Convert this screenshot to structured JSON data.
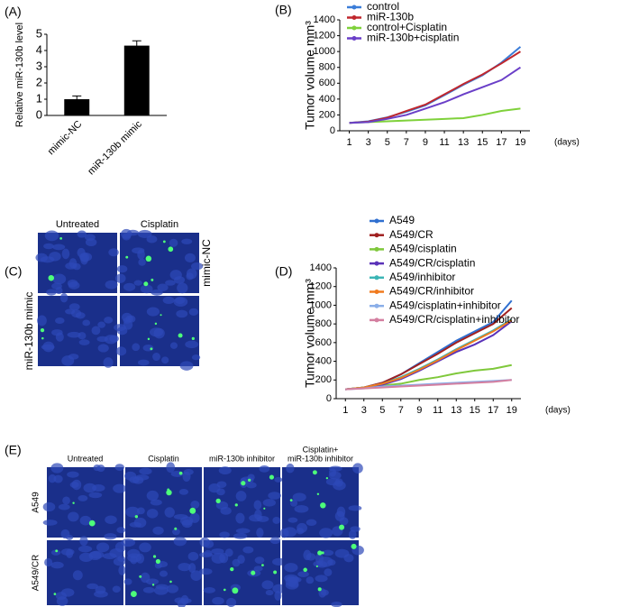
{
  "chart_data": [
    {
      "type": "bar",
      "panel_label": "(A)",
      "y_label": "Relative miR-130b level",
      "categories": [
        "mimic-NC",
        "miR-130b mimic"
      ],
      "values": [
        1,
        4.3
      ],
      "errors": [
        0.2,
        0.3
      ],
      "color": "#000000",
      "ylim": [
        0,
        5
      ],
      "yticks": [
        0,
        1,
        2,
        3,
        4,
        5
      ]
    },
    {
      "type": "line",
      "panel_label": "(B)",
      "y_label": "Tumor volume mm³",
      "x_label": "(days)",
      "x": [
        1,
        3,
        5,
        7,
        9,
        11,
        13,
        15,
        17,
        19
      ],
      "xlim": [
        0,
        20
      ],
      "xticks": [
        1,
        3,
        5,
        7,
        9,
        11,
        13,
        15,
        17,
        19
      ],
      "ylim": [
        0,
        1400
      ],
      "yticks": [
        0,
        200,
        400,
        600,
        800,
        1000,
        1200,
        1400
      ],
      "series": [
        {
          "name": "control",
          "color": "#3b7dd8",
          "values": [
            100,
            120,
            170,
            240,
            320,
            450,
            580,
            700,
            860,
            1060
          ]
        },
        {
          "name": "miR-130b",
          "color": "#c0272d",
          "values": [
            100,
            115,
            165,
            250,
            330,
            460,
            590,
            710,
            850,
            1000
          ]
        },
        {
          "name": "control+Cisplatin",
          "color": "#7fd13b",
          "values": [
            100,
            110,
            120,
            130,
            140,
            150,
            160,
            200,
            250,
            280
          ]
        },
        {
          "name": "miR-130b+cisplatin",
          "color": "#6a3fc8",
          "values": [
            100,
            110,
            150,
            200,
            280,
            360,
            460,
            550,
            640,
            800
          ]
        }
      ]
    },
    {
      "type": "line",
      "panel_label": "(D)",
      "y_label": "Tumor volume mm³",
      "x_label": "(days)",
      "x": [
        1,
        3,
        5,
        7,
        9,
        11,
        13,
        15,
        17,
        19
      ],
      "xlim": [
        0,
        20
      ],
      "xticks": [
        1,
        3,
        5,
        7,
        9,
        11,
        13,
        15,
        17,
        19
      ],
      "ylim": [
        0,
        1400
      ],
      "yticks": [
        0,
        200,
        400,
        600,
        800,
        1000,
        1200,
        1400
      ],
      "series": [
        {
          "name": "A549",
          "color": "#2f6fd0",
          "values": [
            100,
            120,
            170,
            260,
            380,
            500,
            620,
            720,
            820,
            1050
          ]
        },
        {
          "name": "A549/CR",
          "color": "#a02020",
          "values": [
            100,
            120,
            170,
            260,
            370,
            480,
            600,
            700,
            800,
            970
          ]
        },
        {
          "name": "A549/cisplatin",
          "color": "#7fc83b",
          "values": [
            100,
            120,
            140,
            160,
            200,
            230,
            270,
            300,
            320,
            360
          ]
        },
        {
          "name": "A549/CR/cisplatin",
          "color": "#5a32b8",
          "values": [
            100,
            115,
            150,
            210,
            300,
            400,
            500,
            580,
            680,
            830
          ]
        },
        {
          "name": "A549/inhibitor",
          "color": "#3bb5b5",
          "values": [
            100,
            120,
            160,
            230,
            320,
            420,
            530,
            630,
            730,
            850
          ]
        },
        {
          "name": "A549/CR/inhibitor",
          "color": "#f07a1e",
          "values": [
            100,
            120,
            160,
            220,
            310,
            410,
            520,
            620,
            720,
            840
          ]
        },
        {
          "name": "A549/cisplatin+inhibitor",
          "color": "#8aaee8",
          "values": [
            100,
            110,
            130,
            140,
            150,
            160,
            170,
            180,
            190,
            200
          ]
        },
        {
          "name": "A549/CR/cisplatin+inhibitor",
          "color": "#d47fa0",
          "values": [
            100,
            110,
            120,
            130,
            140,
            150,
            160,
            170,
            180,
            200
          ]
        }
      ]
    }
  ],
  "images": [
    {
      "panel_label": "(C)",
      "columns": [
        [
          "Untreated"
        ],
        [
          "Cisplatin"
        ]
      ],
      "rows": [
        "mimic-NC",
        "miR-130b mimic"
      ]
    },
    {
      "panel_label": "(E)",
      "columns": [
        [
          "Untreated"
        ],
        [
          "Cisplatin"
        ],
        [
          "miR-130b inhibitor"
        ],
        [
          "Cisplatin+",
          "miR-130b inhibitor"
        ]
      ],
      "rows": [
        "A549",
        "A549/CR"
      ]
    }
  ]
}
